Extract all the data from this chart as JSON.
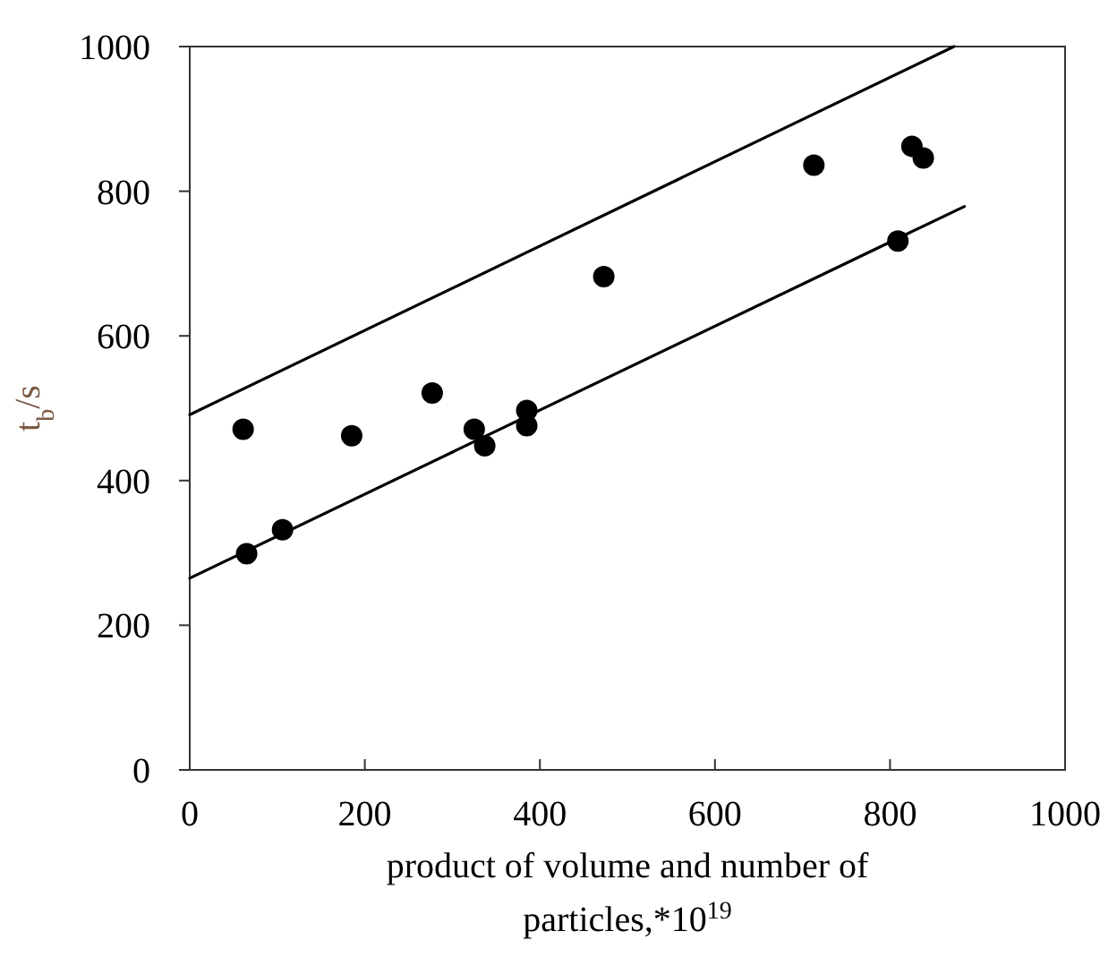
{
  "chart_data": {
    "type": "scatter",
    "xlabel": "product of volume and number of particles,*10$^{19}$",
    "ylabel": "t$_{b}$/s",
    "xlim": [
      0,
      1000
    ],
    "ylim": [
      0,
      1000
    ],
    "xticks": [
      0,
      200,
      400,
      600,
      800,
      1000
    ],
    "yticks": [
      0,
      200,
      400,
      600,
      800,
      1000
    ],
    "grid": false,
    "marker": "circle",
    "series": [
      {
        "color": "#000000",
        "x": [
          61,
          65,
          106,
          185,
          277,
          325,
          337,
          385,
          385,
          473,
          713,
          825,
          838,
          809
        ],
        "values": [
          471,
          299,
          332,
          462,
          521,
          471,
          448,
          497,
          476,
          682,
          836,
          862,
          846,
          731
        ]
      },
      {
        "type": "line",
        "color": "#000000",
        "marker": "none",
        "line_style": "solid",
        "x": [
          0,
          873
        ],
        "values": [
          491,
          1000
        ]
      },
      {
        "type": "line",
        "color": "#000000",
        "marker": "none",
        "line_style": "solid",
        "x": [
          0,
          885
        ],
        "values": [
          265,
          779
        ]
      }
    ]
  }
}
